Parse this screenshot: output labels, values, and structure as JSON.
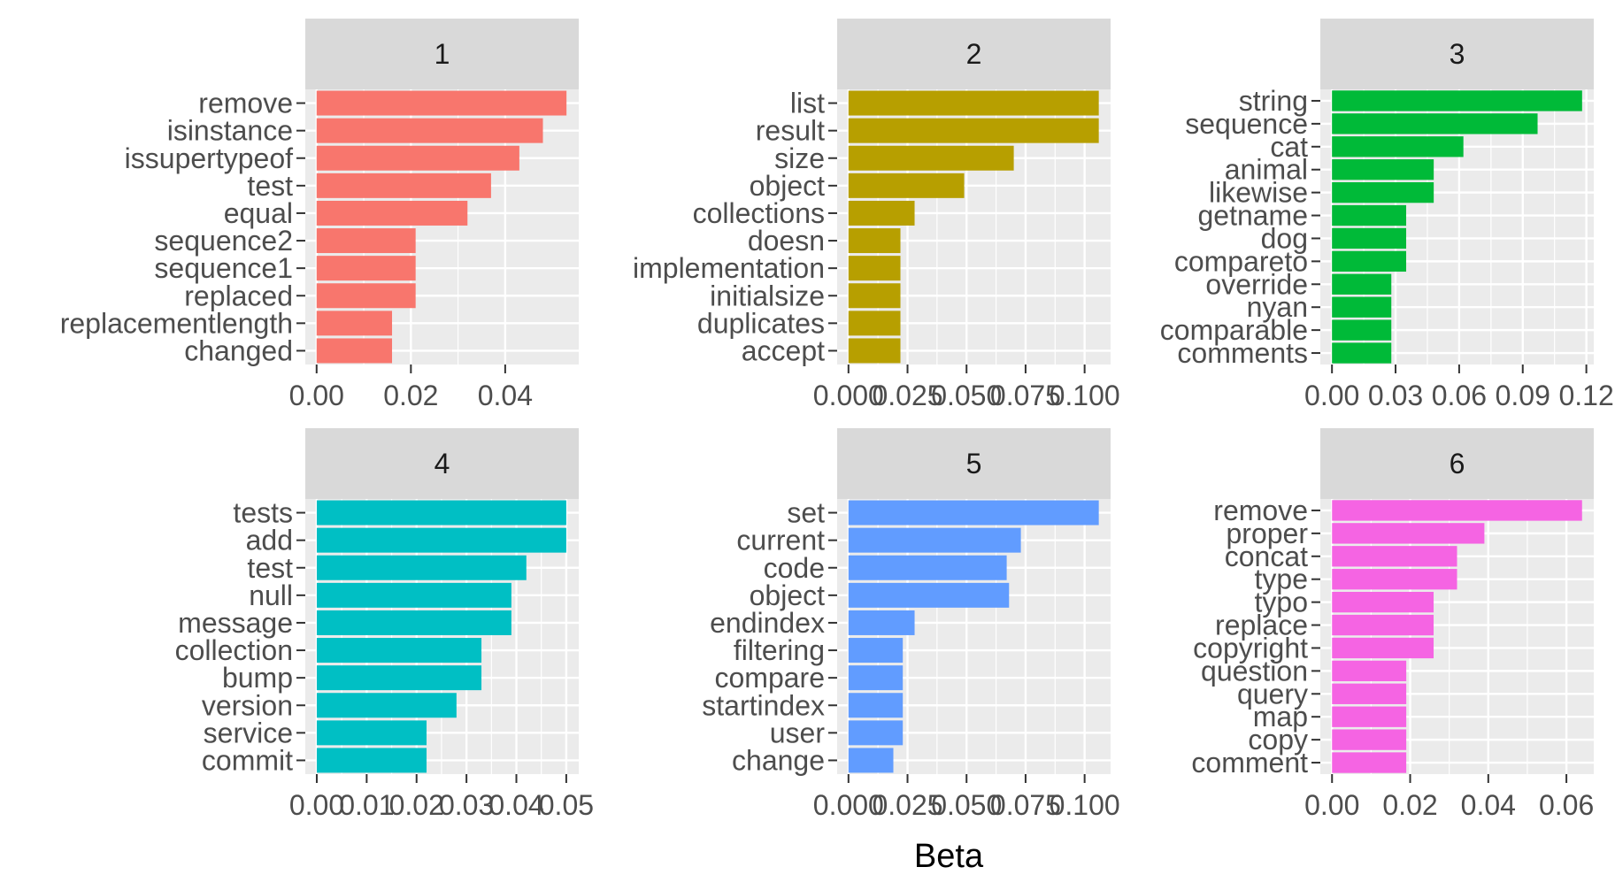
{
  "figure": {
    "xlabel": "Beta"
  },
  "chart_data": [
    {
      "type": "bar",
      "orientation": "horizontal",
      "facet": "1",
      "color": "#F8766D",
      "categories": [
        "remove",
        "isinstance",
        "issupertypeof",
        "test",
        "equal",
        "sequence2",
        "sequence1",
        "replaced",
        "replacementlength",
        "changed"
      ],
      "values": [
        0.053,
        0.048,
        0.043,
        0.037,
        0.032,
        0.021,
        0.021,
        0.021,
        0.016,
        0.016
      ],
      "xlim": [
        -0.0024,
        0.0556
      ],
      "xticks": [
        0.0,
        0.02,
        0.04
      ],
      "xtick_labels": [
        "0.00",
        "0.02",
        "0.04"
      ]
    },
    {
      "type": "bar",
      "orientation": "horizontal",
      "facet": "2",
      "color": "#B79F00",
      "categories": [
        "list",
        "result",
        "size",
        "object",
        "collections",
        "doesn",
        "implementation",
        "initialsize",
        "duplicates",
        "accept"
      ],
      "values": [
        0.106,
        0.106,
        0.07,
        0.049,
        0.028,
        0.022,
        0.022,
        0.022,
        0.022,
        0.022
      ],
      "xlim": [
        -0.0048,
        0.111
      ],
      "xticks": [
        0.0,
        0.025,
        0.05,
        0.075,
        0.1
      ],
      "xtick_labels": [
        "0.000",
        "0.025",
        "0.050",
        "0.075",
        "0.100"
      ]
    },
    {
      "type": "bar",
      "orientation": "horizontal",
      "facet": "3",
      "color": "#00BA38",
      "categories": [
        "string",
        "sequence",
        "cat",
        "animal",
        "likewise",
        "getname",
        "dog",
        "compareto",
        "override",
        "nyan",
        "comparable",
        "comments"
      ],
      "values": [
        0.118,
        0.097,
        0.062,
        0.048,
        0.048,
        0.035,
        0.035,
        0.035,
        0.028,
        0.028,
        0.028,
        0.028
      ],
      "xlim": [
        -0.0055,
        0.1235
      ],
      "xticks": [
        0.0,
        0.03,
        0.06,
        0.09,
        0.12
      ],
      "xtick_labels": [
        "0.00",
        "0.03",
        "0.06",
        "0.09",
        "0.12"
      ]
    },
    {
      "type": "bar",
      "orientation": "horizontal",
      "facet": "4",
      "color": "#00BFC4",
      "categories": [
        "tests",
        "add",
        "test",
        "null",
        "message",
        "collection",
        "bump",
        "version",
        "service",
        "commit"
      ],
      "values": [
        0.05,
        0.05,
        0.042,
        0.039,
        0.039,
        0.033,
        0.033,
        0.028,
        0.022,
        0.022
      ],
      "xlim": [
        -0.0023,
        0.0525
      ],
      "xticks": [
        0.0,
        0.01,
        0.02,
        0.03,
        0.04,
        0.05
      ],
      "xtick_labels": [
        "0.00",
        "0.01",
        "0.02",
        "0.03",
        "0.04",
        "0.05"
      ]
    },
    {
      "type": "bar",
      "orientation": "horizontal",
      "facet": "5",
      "color": "#619CFF",
      "categories": [
        "set",
        "current",
        "code",
        "object",
        "endindex",
        "filtering",
        "compare",
        "startindex",
        "user",
        "change"
      ],
      "values": [
        0.106,
        0.073,
        0.067,
        0.068,
        0.028,
        0.023,
        0.023,
        0.023,
        0.023,
        0.019
      ],
      "xlim": [
        -0.0048,
        0.111
      ],
      "xticks": [
        0.0,
        0.025,
        0.05,
        0.075,
        0.1
      ],
      "xtick_labels": [
        "0.000",
        "0.025",
        "0.050",
        "0.075",
        "0.100"
      ]
    },
    {
      "type": "bar",
      "orientation": "horizontal",
      "facet": "6",
      "color": "#F564E3",
      "categories": [
        "remove",
        "proper",
        "concat",
        "type",
        "typo",
        "replace",
        "copyright",
        "question",
        "query",
        "map",
        "copy",
        "comment"
      ],
      "values": [
        0.064,
        0.039,
        0.032,
        0.032,
        0.026,
        0.026,
        0.026,
        0.019,
        0.019,
        0.019,
        0.019,
        0.019
      ],
      "xlim": [
        -0.003,
        0.067
      ],
      "xticks": [
        0.0,
        0.02,
        0.04,
        0.06
      ],
      "xtick_labels": [
        "0.00",
        "0.02",
        "0.04",
        "0.06"
      ]
    }
  ]
}
